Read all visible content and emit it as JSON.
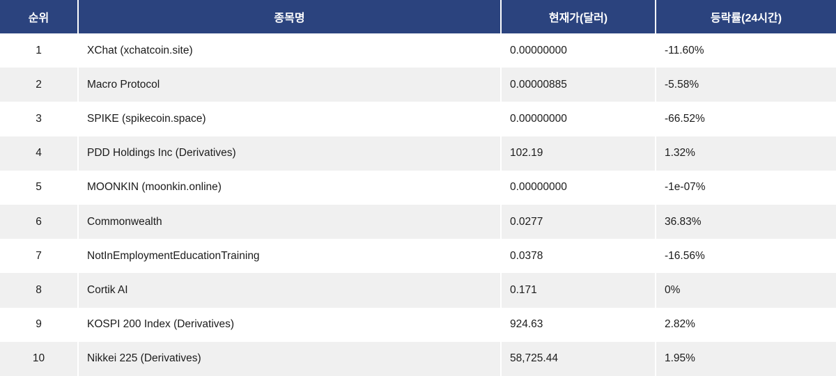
{
  "colors": {
    "header_bg": "#2b437e",
    "header_text": "#ffffff",
    "row_alt_bg": "#f0f0f0",
    "row_bg": "#ffffff",
    "cell_text": "#1b1b1b",
    "divider": "#ffffff"
  },
  "table": {
    "columns": [
      {
        "key": "rank",
        "label": "순위"
      },
      {
        "key": "name",
        "label": "종목명"
      },
      {
        "key": "price",
        "label": "현재가(달러)"
      },
      {
        "key": "change",
        "label": "등락률(24시간)"
      }
    ],
    "rows": [
      {
        "rank": "1",
        "name": "XChat (xchatcoin.site)",
        "price": "0.00000000",
        "change": "-11.60%"
      },
      {
        "rank": "2",
        "name": "Macro Protocol",
        "price": "0.00000885",
        "change": "-5.58%"
      },
      {
        "rank": "3",
        "name": "SPIKE (spikecoin.space)",
        "price": "0.00000000",
        "change": "-66.52%"
      },
      {
        "rank": "4",
        "name": "PDD Holdings Inc (Derivatives)",
        "price": "102.19",
        "change": "1.32%"
      },
      {
        "rank": "5",
        "name": "MOONKIN (moonkin.online)",
        "price": "0.00000000",
        "change": "-1e-07%"
      },
      {
        "rank": "6",
        "name": "Commonwealth",
        "price": "0.0277",
        "change": "36.83%"
      },
      {
        "rank": "7",
        "name": "NotInEmploymentEducationTraining",
        "price": "0.0378",
        "change": "-16.56%"
      },
      {
        "rank": "8",
        "name": "Cortik AI",
        "price": "0.171",
        "change": "0%"
      },
      {
        "rank": "9",
        "name": "KOSPI 200 Index (Derivatives)",
        "price": "924.63",
        "change": "2.82%"
      },
      {
        "rank": "10",
        "name": "Nikkei 225 (Derivatives)",
        "price": "58,725.44",
        "change": "1.95%"
      }
    ]
  }
}
